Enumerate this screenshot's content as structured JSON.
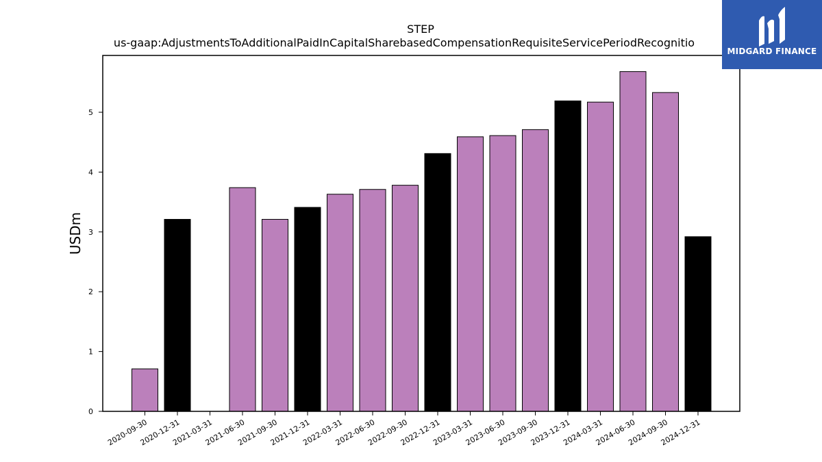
{
  "chart_data": {
    "type": "bar",
    "title": "STEP",
    "subtitle": "us-gaap:AdjustmentsToAdditionalPaidInCapitalSharebasedCompensationRequisiteServicePeriodRecognitio",
    "ylabel": "USDm",
    "xlabel": "",
    "ylim": [
      0,
      5.95
    ],
    "yticks": [
      0,
      1,
      2,
      3,
      4,
      5
    ],
    "grid": false,
    "categories": [
      "2020-09-30",
      "2020-12-31",
      "2021-03-31",
      "2021-06-30",
      "2021-09-30",
      "2021-12-31",
      "2022-03-31",
      "2022-06-30",
      "2022-09-30",
      "2022-12-31",
      "2023-03-31",
      "2023-06-30",
      "2023-09-30",
      "2023-12-31",
      "2024-03-31",
      "2024-06-30",
      "2024-09-30",
      "2024-12-31"
    ],
    "values": [
      0.71,
      3.21,
      0.0,
      3.74,
      3.21,
      3.41,
      3.63,
      3.71,
      3.78,
      4.31,
      4.59,
      4.61,
      4.71,
      5.19,
      5.17,
      5.68,
      5.33,
      2.92
    ],
    "bar_colors": [
      "#bb80bb",
      "#000000",
      "#bb80bb",
      "#bb80bb",
      "#bb80bb",
      "#000000",
      "#bb80bb",
      "#bb80bb",
      "#bb80bb",
      "#000000",
      "#bb80bb",
      "#bb80bb",
      "#bb80bb",
      "#000000",
      "#bb80bb",
      "#bb80bb",
      "#bb80bb",
      "#000000"
    ]
  },
  "logo": {
    "text": "MIDGARD FINANCE",
    "icon": "midgard-logo-icon",
    "background": "#2f5bb0"
  }
}
